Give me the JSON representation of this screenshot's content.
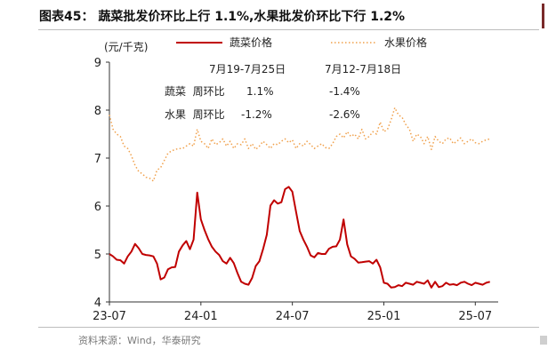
{
  "header": {
    "title": "图表45：  蔬菜批发价环比上行 1.1%,水果批发价环比下行 1.2%",
    "source": "资料来源：Wind，华泰研究"
  },
  "colors": {
    "vegetable": "#c00000",
    "fruit": "#f0a04b",
    "edge_accent": "#7a2a2a"
  },
  "chart_data": {
    "type": "line",
    "title": "",
    "ylabel": "(元/千克)",
    "xlabel": "",
    "ylim": [
      4,
      9
    ],
    "yticks": [
      "4",
      "5",
      "6",
      "7",
      "8",
      "9"
    ],
    "xlim": [
      2023.5,
      2025.625
    ],
    "xticks": [
      {
        "label": "23-07",
        "x": 2023.5
      },
      {
        "label": "24-01",
        "x": 2024.0
      },
      {
        "label": "24-07",
        "x": 2024.5
      },
      {
        "label": "25-01",
        "x": 2025.0
      },
      {
        "label": "25-07",
        "x": 2025.5
      }
    ],
    "grid": false,
    "legend_position": "top-center",
    "series": [
      {
        "name": "蔬菜价格",
        "style": "solid",
        "color": "#c00000",
        "x": [
          2023.5,
          2023.52,
          2023.54,
          2023.56,
          2023.58,
          2023.6,
          2023.62,
          2023.64,
          2023.66,
          2023.68,
          2023.7,
          2023.72,
          2023.74,
          2023.76,
          2023.78,
          2023.8,
          2023.82,
          2023.84,
          2023.86,
          2023.88,
          2023.9,
          2023.92,
          2023.94,
          2023.96,
          2023.98,
          2024.0,
          2024.02,
          2024.04,
          2024.06,
          2024.08,
          2024.1,
          2024.12,
          2024.14,
          2024.16,
          2024.18,
          2024.2,
          2024.22,
          2024.24,
          2024.26,
          2024.28,
          2024.3,
          2024.32,
          2024.34,
          2024.36,
          2024.38,
          2024.4,
          2024.42,
          2024.44,
          2024.46,
          2024.48,
          2024.5,
          2024.52,
          2024.54,
          2024.56,
          2024.58,
          2024.6,
          2024.62,
          2024.64,
          2024.66,
          2024.68,
          2024.7,
          2024.72,
          2024.74,
          2024.76,
          2024.78,
          2024.8,
          2024.82,
          2024.84,
          2024.86,
          2024.88,
          2024.9,
          2024.92,
          2024.94,
          2024.96,
          2024.98,
          2025.0,
          2025.02,
          2025.04,
          2025.06,
          2025.08,
          2025.1,
          2025.12,
          2025.14,
          2025.16,
          2025.18,
          2025.2,
          2025.22,
          2025.24,
          2025.26,
          2025.28,
          2025.3,
          2025.32,
          2025.34,
          2025.36,
          2025.38,
          2025.4,
          2025.42,
          2025.44,
          2025.46,
          2025.48,
          2025.5,
          2025.52,
          2025.54,
          2025.56,
          2025.58
        ],
        "y": [
          5.0,
          4.95,
          4.88,
          4.87,
          4.8,
          4.95,
          5.05,
          5.21,
          5.12,
          5.0,
          4.98,
          4.97,
          4.95,
          4.8,
          4.47,
          4.51,
          4.68,
          4.72,
          4.73,
          5.05,
          5.18,
          5.27,
          5.1,
          5.3,
          6.28,
          5.72,
          5.5,
          5.31,
          5.15,
          5.05,
          4.98,
          4.85,
          4.8,
          4.92,
          4.81,
          4.6,
          4.42,
          4.38,
          4.36,
          4.5,
          4.75,
          4.85,
          5.1,
          5.4,
          6.01,
          6.12,
          6.05,
          6.08,
          6.35,
          6.4,
          6.3,
          5.88,
          5.48,
          5.3,
          5.15,
          4.97,
          4.93,
          5.02,
          5.0,
          5.0,
          5.11,
          5.15,
          5.16,
          5.3,
          5.72,
          5.2,
          4.95,
          4.9,
          4.82,
          4.83,
          4.84,
          4.85,
          4.8,
          4.88,
          4.72,
          4.4,
          4.38,
          4.3,
          4.31,
          4.35,
          4.33,
          4.4,
          4.38,
          4.36,
          4.42,
          4.4,
          4.38,
          4.45,
          4.3,
          4.42,
          4.31,
          4.33,
          4.4,
          4.36,
          4.37,
          4.35,
          4.4,
          4.42,
          4.38,
          4.35,
          4.4,
          4.38,
          4.36,
          4.4,
          4.42
        ]
      },
      {
        "name": "水果价格",
        "style": "dotted",
        "color": "#f0a04b",
        "x": [
          2023.5,
          2023.52,
          2023.54,
          2023.56,
          2023.58,
          2023.6,
          2023.62,
          2023.64,
          2023.66,
          2023.68,
          2023.7,
          2023.72,
          2023.74,
          2023.76,
          2023.78,
          2023.8,
          2023.82,
          2023.84,
          2023.86,
          2023.88,
          2023.9,
          2023.92,
          2023.94,
          2023.96,
          2023.98,
          2024.0,
          2024.02,
          2024.04,
          2024.06,
          2024.08,
          2024.1,
          2024.12,
          2024.14,
          2024.16,
          2024.18,
          2024.2,
          2024.22,
          2024.24,
          2024.26,
          2024.28,
          2024.3,
          2024.32,
          2024.34,
          2024.36,
          2024.38,
          2024.4,
          2024.42,
          2024.44,
          2024.46,
          2024.48,
          2024.5,
          2024.52,
          2024.54,
          2024.56,
          2024.58,
          2024.6,
          2024.62,
          2024.64,
          2024.66,
          2024.68,
          2024.7,
          2024.72,
          2024.74,
          2024.76,
          2024.78,
          2024.8,
          2024.82,
          2024.84,
          2024.86,
          2024.88,
          2024.9,
          2024.92,
          2024.94,
          2024.96,
          2024.98,
          2025.0,
          2025.02,
          2025.04,
          2025.06,
          2025.08,
          2025.1,
          2025.12,
          2025.14,
          2025.16,
          2025.18,
          2025.2,
          2025.22,
          2025.24,
          2025.26,
          2025.28,
          2025.3,
          2025.32,
          2025.34,
          2025.36,
          2025.38,
          2025.4,
          2025.42,
          2025.44,
          2025.46,
          2025.48,
          2025.5,
          2025.52,
          2025.54,
          2025.56,
          2025.58
        ],
        "y": [
          7.9,
          7.6,
          7.5,
          7.45,
          7.25,
          7.2,
          7.05,
          6.85,
          6.72,
          6.67,
          6.6,
          6.58,
          6.52,
          6.75,
          6.8,
          6.95,
          7.1,
          7.15,
          7.18,
          7.2,
          7.2,
          7.25,
          7.3,
          7.25,
          7.6,
          7.35,
          7.3,
          7.2,
          7.4,
          7.28,
          7.32,
          7.4,
          7.25,
          7.35,
          7.2,
          7.3,
          7.28,
          7.4,
          7.2,
          7.3,
          7.18,
          7.25,
          7.35,
          7.28,
          7.2,
          7.3,
          7.28,
          7.35,
          7.4,
          7.32,
          7.38,
          7.2,
          7.3,
          7.25,
          7.35,
          7.28,
          7.2,
          7.25,
          7.3,
          7.22,
          7.2,
          7.3,
          7.45,
          7.5,
          7.42,
          7.55,
          7.45,
          7.5,
          7.4,
          7.6,
          7.4,
          7.45,
          7.55,
          7.5,
          7.75,
          7.55,
          7.6,
          7.8,
          8.05,
          7.9,
          7.85,
          7.7,
          7.6,
          7.35,
          7.5,
          7.45,
          7.3,
          7.45,
          7.18,
          7.45,
          7.35,
          7.3,
          7.4,
          7.42,
          7.3,
          7.35,
          7.42,
          7.3,
          7.35,
          7.4,
          7.32,
          7.3,
          7.35,
          7.38,
          7.4
        ]
      }
    ],
    "annotations": {
      "periods": [
        "7月19-7月25日",
        "7月12-7月18日"
      ],
      "rows": [
        {
          "label": "蔬菜  周环比",
          "values": [
            "1.1%",
            "-1.4%"
          ]
        },
        {
          "label": "水果  周环比",
          "values": [
            "-1.2%",
            "-2.6%"
          ]
        }
      ]
    }
  }
}
